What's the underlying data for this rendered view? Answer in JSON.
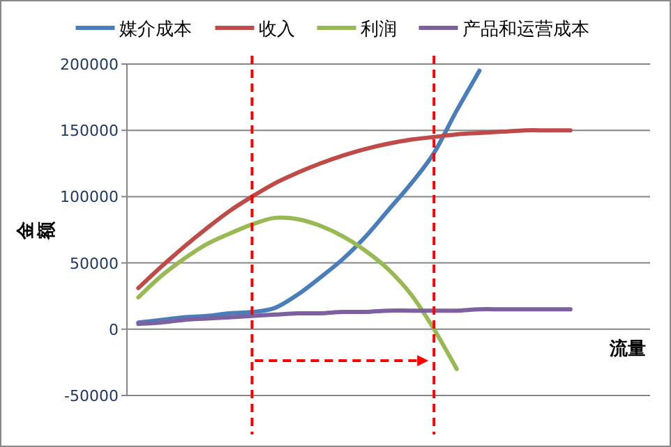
{
  "chart_data": {
    "type": "line",
    "ylabel": "金额",
    "xlabel": "流量",
    "categories": [
      null,
      null,
      null,
      null,
      null,
      null,
      null,
      null,
      null,
      null,
      null,
      null,
      null,
      null,
      null,
      null,
      null,
      null,
      null,
      null,
      null,
      null,
      null
    ],
    "series": [
      {
        "name": "媒介成本",
        "color": "#4a7ebb",
        "values": [
          5000,
          7000,
          9000,
          10000,
          12000,
          13000,
          16000,
          26000,
          39000,
          53000,
          70000,
          90000,
          110000,
          133000,
          165000,
          195000,
          null,
          null,
          null,
          null,
          null,
          null,
          null
        ]
      },
      {
        "name": "收入",
        "color": "#be4b48",
        "values": [
          31000,
          47000,
          62000,
          76000,
          89000,
          100000,
          110000,
          118000,
          125000,
          131000,
          136000,
          140000,
          143000,
          145000,
          147000,
          148000,
          149000,
          150000,
          150000,
          150000,
          null,
          null,
          null
        ]
      },
      {
        "name": "利润",
        "color": "#98b954",
        "values": [
          24000,
          40000,
          53000,
          64000,
          72000,
          79000,
          84000,
          83000,
          78000,
          70000,
          59000,
          45000,
          26000,
          0,
          -30000,
          null,
          null,
          null,
          null,
          null,
          null,
          null,
          null
        ]
      },
      {
        "name": "产品和运营成本",
        "color": "#7d60a0",
        "values": [
          4000,
          5000,
          7000,
          8000,
          9000,
          10000,
          11000,
          12000,
          12000,
          13000,
          13000,
          14000,
          14000,
          14000,
          14000,
          15000,
          15000,
          15000,
          15000,
          15000,
          null,
          null,
          null
        ]
      }
    ],
    "ylim": [
      -50000,
      200000
    ],
    "yticks": [
      -50000,
      0,
      50000,
      100000,
      150000,
      200000
    ],
    "grid": "y",
    "legend": "top",
    "marker": "none",
    "line_style": "solid"
  }
}
